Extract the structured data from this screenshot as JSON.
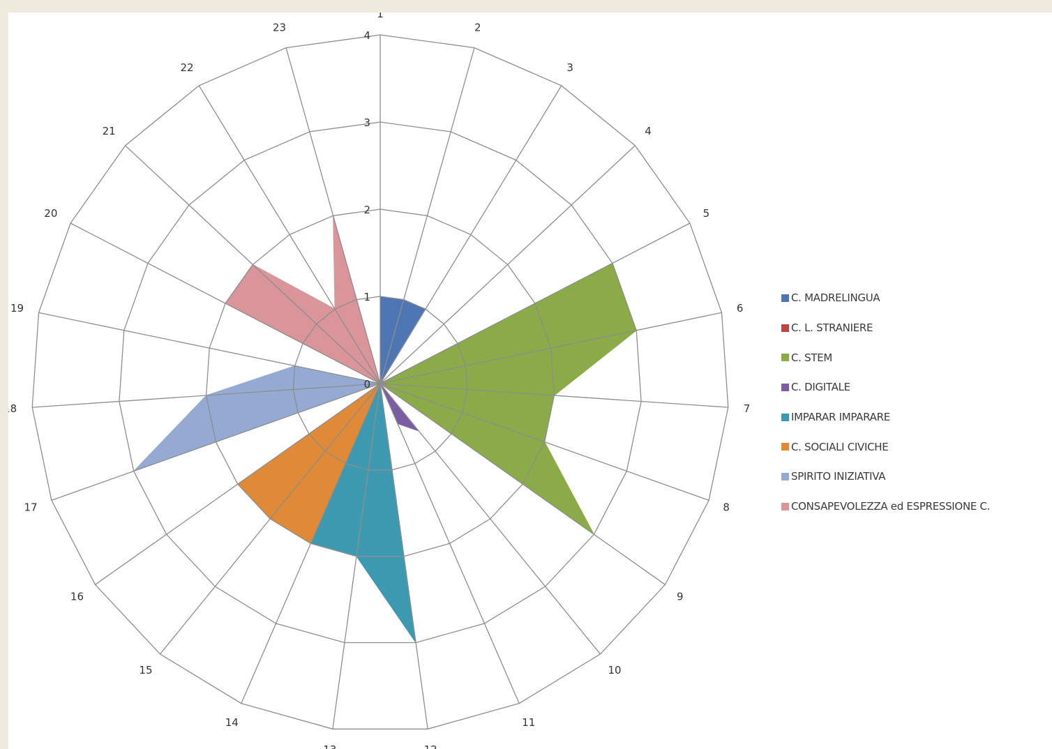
{
  "chart_data": {
    "type": "radar",
    "categories": [
      "1",
      "2",
      "3",
      "4",
      "5",
      "6",
      "7",
      "8",
      "9",
      "10",
      "11",
      "12",
      "13",
      "14",
      "15",
      "16",
      "17",
      "18",
      "19",
      "20",
      "21",
      "22",
      "23"
    ],
    "radial_ticks": [
      "0",
      "1",
      "2",
      "3",
      "4"
    ],
    "rmax": 4,
    "grid": true,
    "legend_position": "right",
    "series": [
      {
        "name": "C. MADRELINGUA",
        "color": "#4f76b4",
        "values": [
          1,
          1,
          1,
          0,
          0,
          0,
          0,
          0,
          0,
          0,
          0,
          0,
          0,
          0,
          0,
          0,
          0,
          0,
          0,
          0,
          0,
          0,
          0
        ]
      },
      {
        "name": "C. L. STRANIERE",
        "color": "#b84745",
        "values": [
          0,
          0,
          0,
          0,
          3,
          0,
          0,
          0,
          0,
          0,
          0,
          0,
          0,
          0,
          0,
          0,
          0,
          0,
          0,
          0,
          0,
          0,
          0
        ]
      },
      {
        "name": "C. STEM",
        "color": "#8aab47",
        "values": [
          0,
          0,
          0,
          0,
          3,
          3,
          2,
          2,
          3,
          0,
          0,
          0,
          0,
          0,
          0,
          0,
          0,
          0,
          0,
          0,
          0,
          0,
          0
        ]
      },
      {
        "name": "C. DIGITALE",
        "color": "#7b5da3",
        "values": [
          0,
          0,
          0,
          0,
          0,
          0,
          0,
          0,
          0,
          0.7,
          0.5,
          0,
          0,
          0,
          0,
          0,
          0,
          0,
          0,
          0,
          0,
          0,
          0
        ]
      },
      {
        "name": "IMPARAR IMPARARE",
        "color": "#3d99b0",
        "values": [
          0,
          0,
          0,
          0,
          0,
          0,
          0,
          0,
          0,
          0,
          0,
          3,
          2,
          2,
          0,
          0,
          0,
          0,
          0,
          0,
          0,
          0,
          0
        ]
      },
      {
        "name": "C. SOCIALI CIVICHE",
        "color": "#e08a37",
        "values": [
          0,
          0,
          0,
          0,
          0,
          0,
          0,
          0,
          0,
          0,
          0,
          0,
          0,
          2,
          2,
          2,
          0,
          0,
          0,
          0,
          0,
          0,
          0
        ]
      },
      {
        "name": "SPIRITO INIZIATIVA",
        "color": "#94aad3",
        "values": [
          0,
          0,
          0,
          0,
          0,
          0,
          0,
          0,
          0,
          0,
          0,
          0,
          0,
          0,
          0,
          0,
          3,
          2,
          1,
          0,
          0,
          0,
          0
        ]
      },
      {
        "name": "CONSAPEVOLEZZA  ed ESPRESSIONE  C.",
        "color": "#d9959a",
        "values": [
          0,
          0,
          0,
          0,
          0,
          0,
          0,
          0,
          0,
          0,
          0,
          0,
          0,
          0,
          0,
          0,
          0,
          0,
          0,
          2,
          2,
          1,
          2
        ]
      }
    ]
  }
}
